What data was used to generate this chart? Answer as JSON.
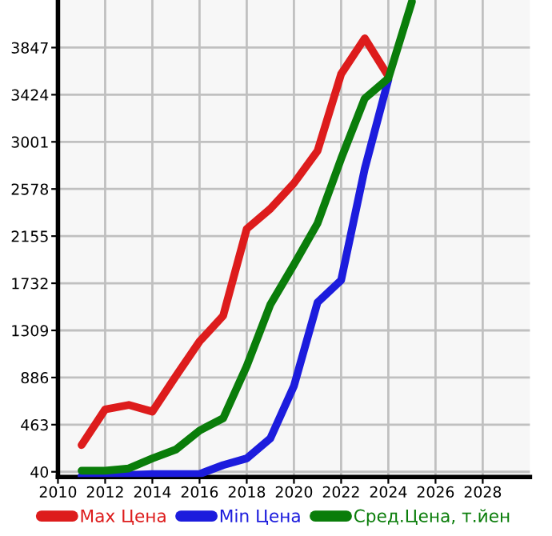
{
  "chart_data": {
    "type": "line",
    "x": [
      2011,
      2012,
      2013,
      2014,
      2015,
      2016,
      2017,
      2018,
      2019,
      2020,
      2021,
      2022,
      2023,
      2024,
      2025
    ],
    "series": [
      {
        "name": "Max Цена",
        "color": "#dd1c1c",
        "values": [
          280,
          600,
          640,
          580,
          900,
          1210,
          1440,
          2220,
          2400,
          2630,
          2920,
          3610,
          3930,
          3590,
          null
        ]
      },
      {
        "name": "Min Цена",
        "color": "#1c1cdd",
        "values": [
          0,
          10,
          10,
          20,
          20,
          20,
          100,
          160,
          340,
          810,
          1560,
          1760,
          2760,
          3560,
          null
        ]
      },
      {
        "name": "Сред.Цена, т.йен",
        "color": "#0a7d0a",
        "values": [
          50,
          50,
          70,
          160,
          240,
          410,
          520,
          990,
          1540,
          1900,
          2270,
          2850,
          3390,
          3570,
          4260
        ]
      }
    ],
    "xlim": [
      2010,
      2030
    ],
    "xticks": [
      2010,
      2012,
      2014,
      2016,
      2018,
      2020,
      2022,
      2024,
      2026,
      2028
    ],
    "ylim": [
      -7,
      4274
    ],
    "yticks": [
      40,
      463,
      886,
      1309,
      1732,
      2155,
      2578,
      3001,
      3424,
      3847
    ],
    "grid": true,
    "legend": "bottom",
    "marker": "none",
    "line_style": "solid"
  }
}
